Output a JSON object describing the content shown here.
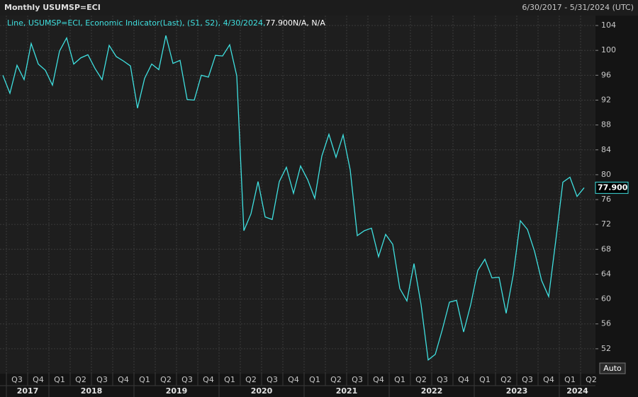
{
  "chart_data": {
    "type": "line",
    "title": "Monthly USUMSP=ECI",
    "date_range": "6/30/2017 - 5/31/2024 (UTC)",
    "legend": "Line, USUMSP=ECI, Economic Indicator(Last), (S1, S2), 4/30/2024,",
    "legend_suffix": "N/A, N/A",
    "last_value_label": "77.900",
    "auto_button": "Auto",
    "quarters": [
      "Q3",
      "Q4",
      "Q1",
      "Q2",
      "Q3",
      "Q4",
      "Q1",
      "Q2",
      "Q3",
      "Q4",
      "Q1",
      "Q2",
      "Q3",
      "Q4",
      "Q1",
      "Q2",
      "Q3",
      "Q4",
      "Q1",
      "Q2",
      "Q3",
      "Q4",
      "Q1",
      "Q2",
      "Q3",
      "Q4",
      "Q1",
      "Q2"
    ],
    "years": [
      "2017",
      "2018",
      "2019",
      "2020",
      "2021",
      "2022",
      "2023",
      "2024"
    ],
    "series": [
      {
        "name": "USUMSP=ECI",
        "color": "#3fe0e0",
        "values": [
          96.0,
          93.1,
          97.6,
          95.3,
          101.1,
          97.8,
          96.8,
          94.4,
          99.9,
          102.0,
          97.8,
          98.8,
          99.3,
          97.1,
          95.3,
          100.8,
          99.0,
          98.3,
          97.5,
          90.7,
          95.5,
          97.8,
          96.9,
          102.4,
          97.9,
          98.4,
          92.1,
          92.0,
          96.0,
          95.7,
          99.2,
          99.1,
          100.9,
          95.9,
          71.0,
          73.7,
          78.9,
          73.2,
          72.8,
          78.9,
          81.2,
          77.0,
          81.4,
          79.2,
          76.2,
          83.0,
          86.5,
          82.8,
          86.4,
          80.8,
          70.2,
          71.0,
          71.4,
          66.8,
          70.4,
          68.8,
          61.7,
          59.7,
          65.7,
          59.1,
          50.2,
          51.1,
          55.1,
          59.5,
          59.8,
          54.7,
          59.1,
          64.6,
          66.4,
          63.4,
          63.5,
          57.7,
          63.9,
          72.6,
          71.2,
          67.7,
          63.0,
          60.4,
          69.4,
          78.8,
          79.6,
          76.5,
          77.9
        ]
      }
    ],
    "ylim": [
      48,
      105.6
    ],
    "yticks": [
      52,
      56,
      60,
      64,
      68,
      72,
      76,
      80,
      84,
      88,
      92,
      96,
      100,
      104
    ],
    "grid": true
  }
}
